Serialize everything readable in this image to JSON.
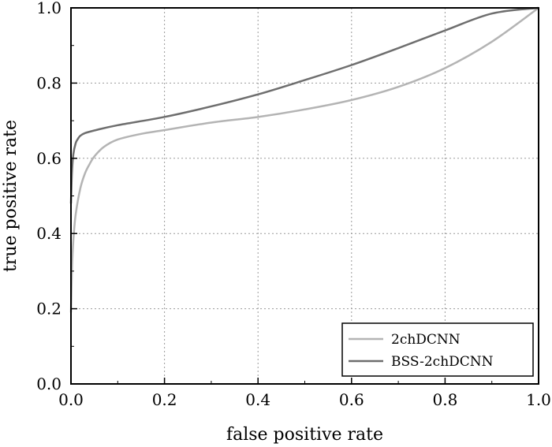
{
  "chart_data": {
    "type": "line",
    "title": "",
    "xlabel": "false positive rate",
    "ylabel": "true positive rate",
    "xlim": [
      0.0,
      1.0
    ],
    "ylim": [
      0.0,
      1.0
    ],
    "xticks": [
      "0.0",
      "0.2",
      "0.4",
      "0.6",
      "0.8",
      "1.0"
    ],
    "yticks": [
      "0.0",
      "0.2",
      "0.4",
      "0.6",
      "0.8",
      "1.0"
    ],
    "grid": true,
    "legend_position": "bottom-right",
    "series": [
      {
        "name": "2chDCNN",
        "color": "#b4b4b4",
        "x": [
          0.0,
          0.002,
          0.005,
          0.01,
          0.02,
          0.03,
          0.04,
          0.05,
          0.07,
          0.1,
          0.15,
          0.2,
          0.3,
          0.4,
          0.5,
          0.6,
          0.7,
          0.8,
          0.9,
          1.0
        ],
        "y": [
          0.19,
          0.3,
          0.38,
          0.45,
          0.52,
          0.56,
          0.585,
          0.605,
          0.63,
          0.65,
          0.665,
          0.675,
          0.695,
          0.71,
          0.73,
          0.755,
          0.79,
          0.84,
          0.91,
          1.0
        ]
      },
      {
        "name": "BSS-2chDCNN",
        "color": "#6e6e6e",
        "x": [
          0.0,
          0.002,
          0.005,
          0.01,
          0.015,
          0.02,
          0.03,
          0.05,
          0.1,
          0.2,
          0.3,
          0.4,
          0.5,
          0.6,
          0.7,
          0.8,
          0.9,
          1.0
        ],
        "y": [
          0.48,
          0.56,
          0.61,
          0.64,
          0.652,
          0.66,
          0.667,
          0.674,
          0.688,
          0.71,
          0.738,
          0.77,
          0.808,
          0.848,
          0.893,
          0.94,
          0.985,
          1.0
        ]
      }
    ]
  }
}
